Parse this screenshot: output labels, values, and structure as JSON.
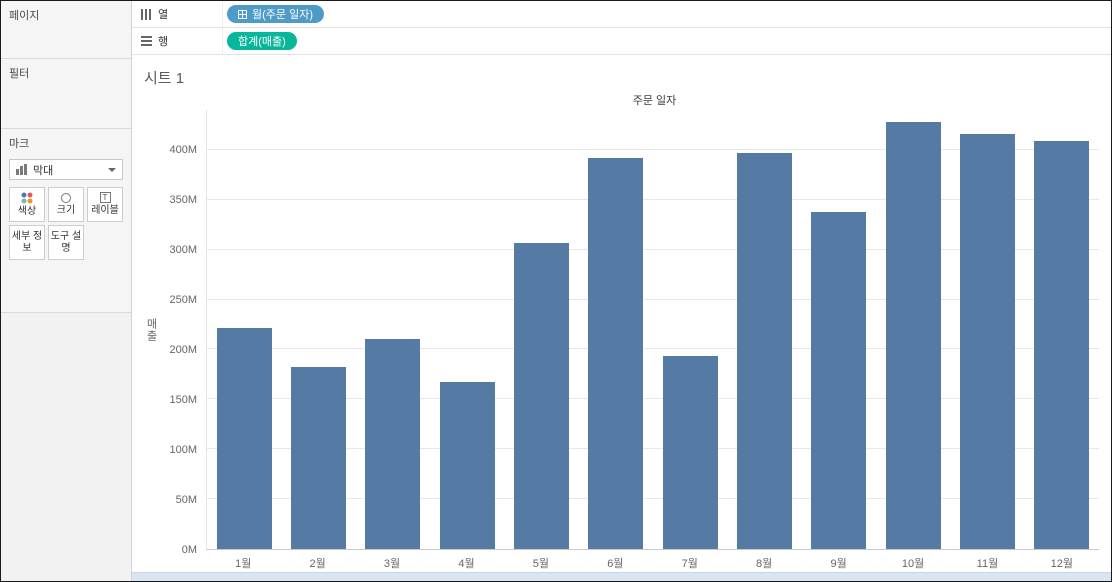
{
  "sidebar": {
    "pages": {
      "title": "페이지"
    },
    "filters": {
      "title": "필터"
    },
    "marks": {
      "title": "마크",
      "mark_type": "막대",
      "label_icon_glyph": "T",
      "buttons": [
        {
          "label": "색상"
        },
        {
          "label": "크기"
        },
        {
          "label": "레이블"
        },
        {
          "label": "세부 정보"
        },
        {
          "label": "도구 설명"
        }
      ]
    }
  },
  "shelves": {
    "columns": {
      "label": "열",
      "pill": "월(주문 일자)"
    },
    "rows": {
      "label": "행",
      "pill": "합계(매출)"
    }
  },
  "sheet": {
    "title": "시트 1"
  },
  "colors": {
    "dimension_pill": "#4e9bc8",
    "measure_pill": "#08b79b",
    "bar": "#557ba5"
  },
  "chart_data": {
    "type": "bar",
    "title": "주문 일자",
    "categories": [
      "1월",
      "2월",
      "3월",
      "4월",
      "5월",
      "6월",
      "7월",
      "8월",
      "9월",
      "10월",
      "11월",
      "12월"
    ],
    "values": [
      222,
      182,
      210,
      167,
      307,
      392,
      193,
      397,
      338,
      428,
      416,
      409
    ],
    "unit": "M",
    "xlabel": "",
    "ylabel": "매출",
    "ylim": [
      0,
      440
    ],
    "yticks": [
      "0M",
      "50M",
      "100M",
      "150M",
      "200M",
      "250M",
      "300M",
      "350M",
      "400M"
    ],
    "grid": true,
    "legend": false,
    "bar_color": "#557ba5"
  }
}
